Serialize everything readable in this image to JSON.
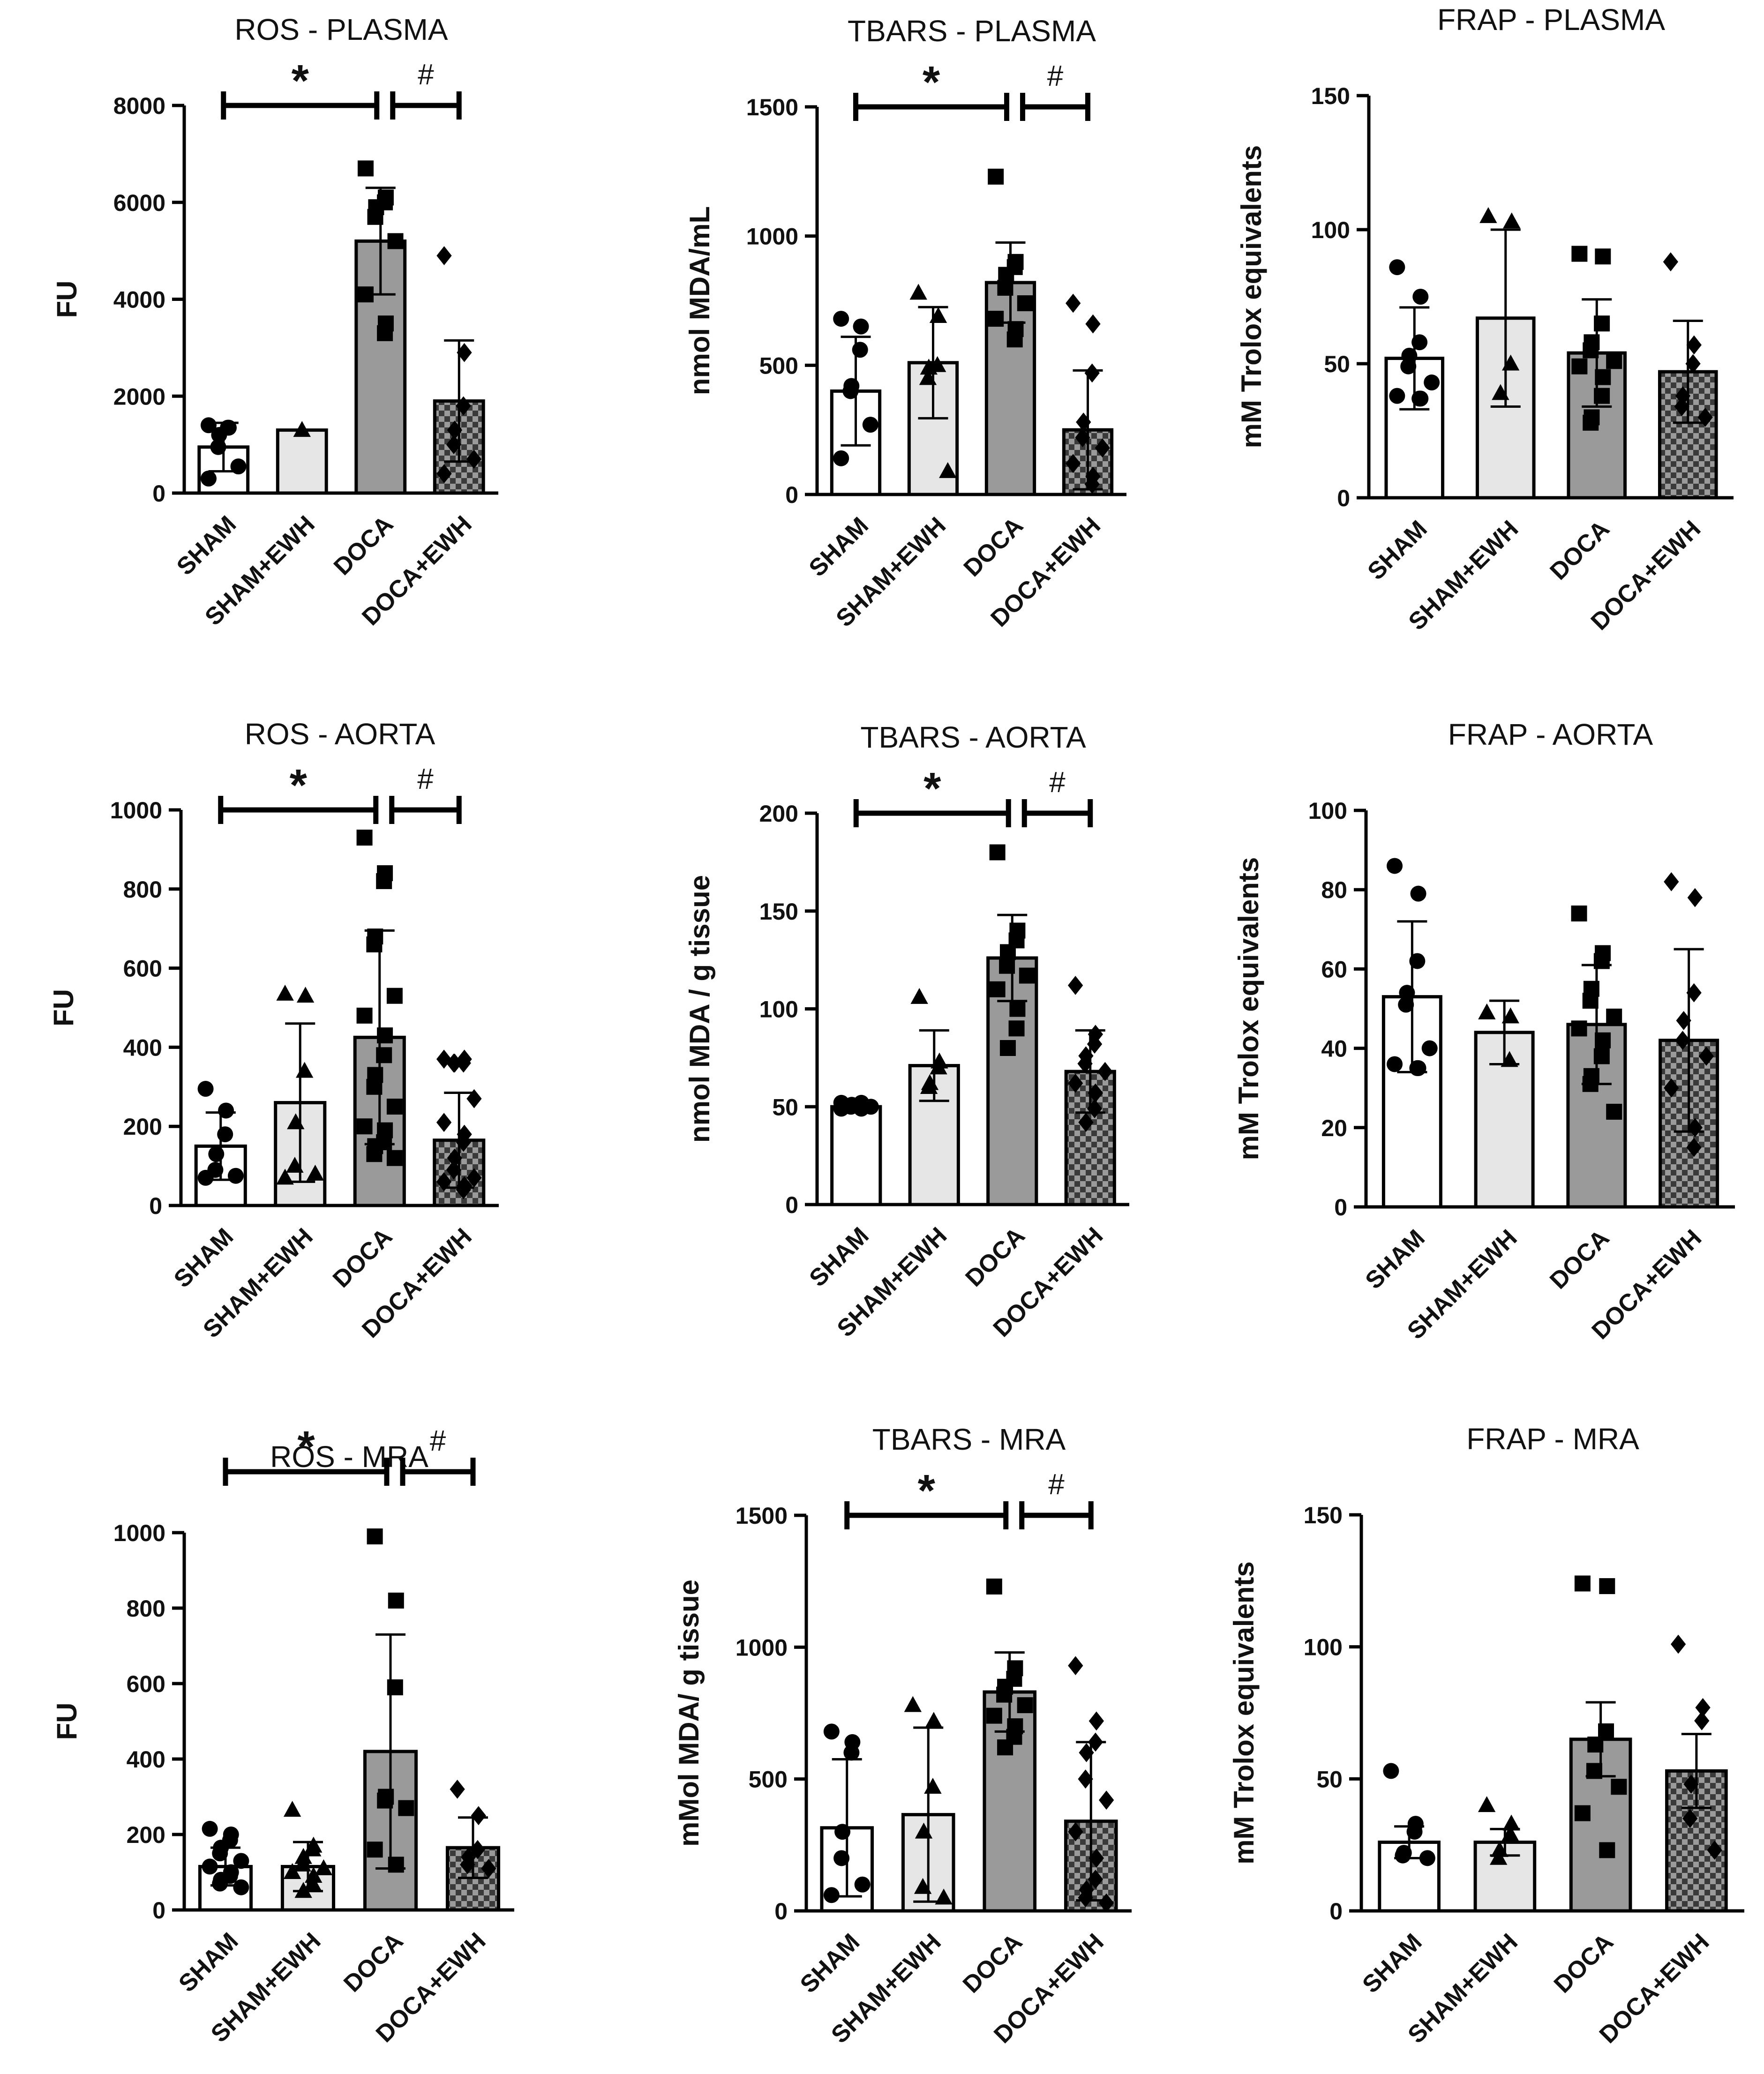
{
  "figure": {
    "categories": [
      "SHAM",
      "SHAM+EWH",
      "DOCA",
      "DOCA+EWH"
    ],
    "category_fills": [
      "#ffffff",
      "#e6e6e6",
      "#9a9a9a",
      "checker"
    ],
    "markers": [
      "circle",
      "triangle",
      "square",
      "diamond"
    ]
  },
  "chart_data": [
    {
      "type": "bar",
      "title": "ROS - PLASMA",
      "ylabel": "FU",
      "ylim": [
        0,
        8000
      ],
      "yticks": [
        0,
        2000,
        4000,
        6000,
        8000
      ],
      "means": [
        950,
        1300,
        5200,
        1900
      ],
      "sd": [
        500,
        0,
        1100,
        1250
      ],
      "points": [
        [
          1400,
          1350,
          1350,
          1200,
          950,
          550,
          300
        ],
        [
          1300
        ],
        [
          6700,
          6100,
          6000,
          5900,
          5700,
          5200,
          4100,
          3500,
          3300
        ],
        [
          4900,
          2900,
          1800,
          1300,
          1000,
          700,
          400
        ]
      ],
      "significance": [
        {
          "label": "*",
          "from": 0,
          "to": 2
        },
        {
          "label": "#",
          "from": 2,
          "to": 3
        }
      ]
    },
    {
      "type": "bar",
      "title": "TBARS - PLASMA",
      "ylabel": "nmol MDA/mL",
      "ylim": [
        0,
        1500
      ],
      "yticks": [
        0,
        500,
        1000,
        1500
      ],
      "means": [
        400,
        510,
        820,
        250
      ],
      "sd": [
        210,
        215,
        155,
        230
      ],
      "points": [
        [
          680,
          650,
          560,
          420,
          400,
          270,
          140
        ],
        [
          780,
          690,
          500,
          490,
          450,
          90
        ],
        [
          1230,
          900,
          880,
          850,
          800,
          740,
          680,
          640,
          600
        ],
        [
          740,
          660,
          470,
          280,
          220,
          180,
          120,
          70,
          40
        ]
      ],
      "significance": [
        {
          "label": "*",
          "from": 0,
          "to": 2
        },
        {
          "label": "#",
          "from": 2,
          "to": 3
        }
      ]
    },
    {
      "type": "bar",
      "title": "FRAP - PLASMA",
      "ylabel": "mM Trolox equivalents",
      "ylim": [
        0,
        150
      ],
      "yticks": [
        0,
        50,
        100,
        150
      ],
      "means": [
        52,
        67,
        54,
        47
      ],
      "sd": [
        19,
        33,
        20,
        19
      ],
      "points": [
        [
          86,
          75,
          58,
          53,
          49,
          43,
          38,
          37,
          37
        ],
        [
          105,
          103,
          50,
          39
        ],
        [
          91,
          90,
          65,
          58,
          55,
          51,
          49,
          45,
          38,
          30,
          28
        ],
        [
          88,
          57,
          50,
          38,
          34,
          30
        ]
      ],
      "significance": []
    },
    {
      "type": "bar",
      "title": "ROS - AORTA",
      "ylabel": "FU",
      "ylim": [
        0,
        1000
      ],
      "yticks": [
        0,
        200,
        400,
        600,
        800,
        1000
      ],
      "means": [
        150,
        260,
        425,
        165
      ],
      "sd": [
        85,
        200,
        270,
        120
      ],
      "points": [
        [
          295,
          240,
          180,
          130,
          90,
          75,
          70
        ],
        [
          535,
          530,
          340,
          210,
          100,
          80,
          70
        ],
        [
          930,
          840,
          820,
          680,
          660,
          530,
          480,
          430,
          380,
          330,
          300,
          250,
          200,
          190,
          160,
          150,
          130,
          120
        ],
        [
          370,
          370,
          360,
          360,
          360,
          270,
          210,
          180,
          160,
          120,
          90,
          70,
          60,
          50,
          40
        ]
      ],
      "significance": [
        {
          "label": "*",
          "from": 0,
          "to": 2
        },
        {
          "label": "#",
          "from": 2,
          "to": 3
        }
      ]
    },
    {
      "type": "bar",
      "title": "TBARS - AORTA",
      "ylabel": "nmol MDA  / g tissue",
      "ylim": [
        0,
        200
      ],
      "yticks": [
        0,
        50,
        100,
        150,
        200
      ],
      "means": [
        50,
        71,
        126,
        68
      ],
      "sd": [
        2,
        18,
        22,
        21
      ],
      "points": [
        [
          52,
          52,
          51,
          51,
          50,
          50,
          49,
          49
        ],
        [
          106,
          73,
          70,
          62,
          60
        ],
        [
          180,
          140,
          135,
          129,
          122,
          117,
          110,
          100,
          90,
          80
        ],
        [
          112,
          87,
          82,
          76,
          72,
          68,
          62,
          57,
          49,
          42
        ]
      ],
      "significance": [
        {
          "label": "*",
          "from": 0,
          "to": 2
        },
        {
          "label": "#",
          "from": 2,
          "to": 3
        }
      ]
    },
    {
      "type": "bar",
      "title": "FRAP - AORTA",
      "ylabel": "mM Trolox equivalents",
      "ylim": [
        0,
        100
      ],
      "yticks": [
        0,
        20,
        40,
        60,
        80,
        100
      ],
      "means": [
        53,
        44,
        46,
        42
      ],
      "sd": [
        19,
        8,
        15,
        23
      ],
      "points": [
        [
          86,
          79,
          62,
          54,
          51,
          40,
          36,
          35,
          35
        ],
        [
          49,
          48,
          37
        ],
        [
          74,
          64,
          62,
          55,
          52,
          48,
          45,
          42,
          38,
          33,
          31,
          24
        ],
        [
          82,
          78,
          54,
          47,
          42,
          38,
          30,
          20,
          15
        ]
      ],
      "significance": []
    },
    {
      "type": "bar",
      "title": "ROS - MRA",
      "ylabel": "FU",
      "ylim": [
        0,
        1000
      ],
      "yticks": [
        0,
        200,
        400,
        600,
        800,
        1000
      ],
      "means": [
        115,
        115,
        420,
        165
      ],
      "sd": [
        50,
        65,
        310,
        80
      ],
      "points": [
        [
          215,
          200,
          185,
          165,
          150,
          130,
          115,
          100,
          90,
          80,
          70,
          60
        ],
        [
          265,
          170,
          160,
          140,
          120,
          110,
          100,
          90,
          70,
          50
        ],
        [
          990,
          820,
          590,
          300,
          290,
          270,
          160,
          120
        ],
        [
          320,
          250,
          160,
          140,
          120,
          110
        ]
      ],
      "significance": [
        {
          "label": "*",
          "from": 0,
          "to": 2
        },
        {
          "label": "#",
          "from": 2,
          "to": 3
        }
      ]
    },
    {
      "type": "bar",
      "title": "TBARS - MRA",
      "ylabel": "mMol MDA/ g tissue",
      "ylim": [
        0,
        1500
      ],
      "yticks": [
        0,
        500,
        1000,
        1500
      ],
      "means": [
        315,
        365,
        830,
        340
      ],
      "sd": [
        260,
        330,
        150,
        300
      ],
      "points": [
        [
          680,
          640,
          600,
          300,
          200,
          100,
          60
        ],
        [
          780,
          720,
          470,
          300,
          90,
          50
        ],
        [
          1230,
          920,
          880,
          850,
          820,
          780,
          740,
          700,
          660,
          620
        ],
        [
          930,
          720,
          640,
          600,
          500,
          420,
          300,
          200,
          120,
          80,
          50,
          30
        ]
      ],
      "significance": [
        {
          "label": "*",
          "from": 0,
          "to": 2
        },
        {
          "label": "#",
          "from": 2,
          "to": 3
        }
      ]
    },
    {
      "type": "bar",
      "title": "FRAP - MRA",
      "ylabel": "mM Trolox equivalents",
      "ylim": [
        0,
        150
      ],
      "yticks": [
        0,
        50,
        100,
        150
      ],
      "means": [
        26,
        26,
        65,
        53
      ],
      "sd": [
        6,
        5,
        14,
        14
      ],
      "points": [
        [
          53,
          33,
          30,
          22,
          21,
          20
        ],
        [
          40,
          33,
          29,
          23,
          20
        ],
        [
          124,
          123,
          68,
          63,
          53,
          47,
          37,
          23
        ],
        [
          101,
          77,
          72,
          48,
          35,
          23
        ]
      ],
      "significance": []
    }
  ]
}
